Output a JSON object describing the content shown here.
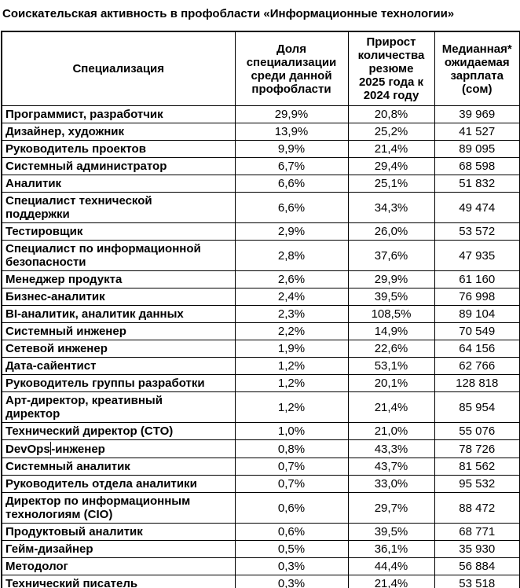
{
  "colors": {
    "text": "#000000",
    "border": "#000000",
    "background": "#ffffff"
  },
  "chart_data": {
    "type": "table",
    "title": "Соискательская активность в профобласти «Информационные технологии»",
    "columns": [
      "Специализация",
      "Доля\nспециализации\nсреди данной\nпрофобласти",
      "Прирост\nколичества\nрезюме\n2025 года к\n2024 году",
      "Медианная*\nожидаемая\nзарплата\n(сом)"
    ],
    "rows": [
      {
        "spec": "Программист, разработчик",
        "share": "29,9%",
        "growth": "20,8%",
        "salary": "39 969"
      },
      {
        "spec": "Дизайнер, художник",
        "share": "13,9%",
        "growth": "25,2%",
        "salary": "41 527"
      },
      {
        "spec": "Руководитель проектов",
        "share": "9,9%",
        "growth": "21,4%",
        "salary": "89 095"
      },
      {
        "spec": "Системный администратор",
        "share": "6,7%",
        "growth": "29,4%",
        "salary": "68 598"
      },
      {
        "spec": "Аналитик",
        "share": "6,6%",
        "growth": "25,1%",
        "salary": "51 832"
      },
      {
        "spec": "Специалист технической\nподдержки",
        "share": "6,6%",
        "growth": "34,3%",
        "salary": "49 474"
      },
      {
        "spec": "Тестировщик",
        "share": "2,9%",
        "growth": "26,0%",
        "salary": "53 572"
      },
      {
        "spec": "Специалист по информационной\nбезопасности",
        "share": "2,8%",
        "growth": "37,6%",
        "salary": "47 935"
      },
      {
        "spec": "Менеджер продукта",
        "share": "2,6%",
        "growth": "29,9%",
        "salary": "61 160"
      },
      {
        "spec": "Бизнес-аналитик",
        "share": "2,4%",
        "growth": "39,5%",
        "salary": "76 998"
      },
      {
        "spec": "BI-аналитик, аналитик данных",
        "share": "2,3%",
        "growth": "108,5%",
        "salary": "89 104"
      },
      {
        "spec": "Системный инженер",
        "share": "2,2%",
        "growth": "14,9%",
        "salary": "70 549"
      },
      {
        "spec": "Сетевой инженер",
        "share": "1,9%",
        "growth": "22,6%",
        "salary": "64 156"
      },
      {
        "spec": "Дата-сайентист",
        "share": "1,2%",
        "growth": "53,1%",
        "salary": "62 766"
      },
      {
        "spec": "Руководитель группы разработки",
        "share": "1,2%",
        "growth": "20,1%",
        "salary": "128 818"
      },
      {
        "spec": "Арт-директор, креативный\nдиректор",
        "share": "1,2%",
        "growth": "21,4%",
        "salary": "85 954"
      },
      {
        "spec": "Технический директор (CTO)",
        "share": "1,0%",
        "growth": "21,0%",
        "salary": "55 076"
      },
      {
        "spec": "DevOps-инженер",
        "caret_after": "DevOps",
        "share": "0,8%",
        "growth": "43,3%",
        "salary": "78 726"
      },
      {
        "spec": "Системный аналитик",
        "share": "0,7%",
        "growth": "43,7%",
        "salary": "81 562"
      },
      {
        "spec": "Руководитель отдела аналитики",
        "share": "0,7%",
        "growth": "33,0%",
        "salary": "95 532"
      },
      {
        "spec": "Директор по информационным\nтехнологиям (CIO)",
        "share": "0,6%",
        "growth": "29,7%",
        "salary": "88 472"
      },
      {
        "spec": "Продуктовый аналитик",
        "share": "0,6%",
        "growth": "39,5%",
        "salary": "68 771"
      },
      {
        "spec": "Гейм-дизайнер",
        "share": "0,5%",
        "growth": "36,1%",
        "salary": "35 930"
      },
      {
        "spec": "Методолог",
        "share": "0,3%",
        "growth": "44,4%",
        "salary": "56 884"
      },
      {
        "spec": "Технический писатель",
        "share": "0,3%",
        "growth": "21,4%",
        "salary": "53 518"
      }
    ]
  }
}
